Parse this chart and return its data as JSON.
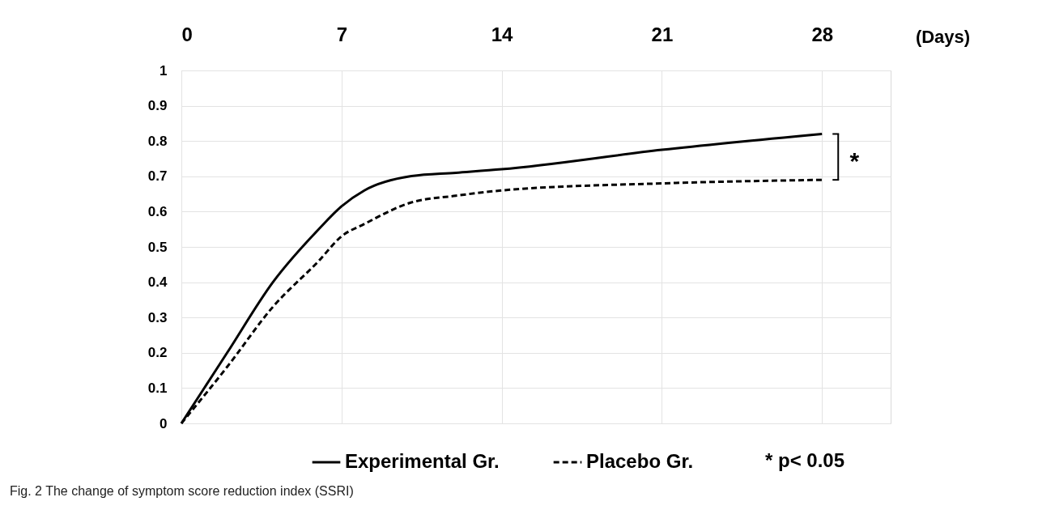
{
  "chart_data": {
    "type": "line",
    "xlabel": "(Days)",
    "xlim": [
      0,
      31
    ],
    "xticks": [
      0,
      7,
      14,
      21,
      28
    ],
    "ylim": [
      0,
      1
    ],
    "yticks": [
      0,
      0.1,
      0.2,
      0.3,
      0.4,
      0.5,
      0.6,
      0.7,
      0.8,
      0.9,
      1
    ],
    "grid": true,
    "legend": "bottom",
    "marker": "none",
    "series": [
      {
        "name": "Experimental Gr.",
        "color": "#000000",
        "line_style": "solid",
        "x": [
          0,
          2,
          4,
          6,
          7,
          8,
          10,
          12,
          14,
          21,
          28
        ],
        "values": [
          0,
          0.2,
          0.4,
          0.55,
          0.615,
          0.66,
          0.7,
          0.71,
          0.72,
          0.775,
          0.82
        ]
      },
      {
        "name": "Placebo Gr.",
        "color": "#000000",
        "line_style": "dashed",
        "x": [
          0,
          2,
          4,
          6,
          7,
          8,
          10,
          12,
          14,
          21,
          28
        ],
        "values": [
          0,
          0.16,
          0.33,
          0.46,
          0.53,
          0.565,
          0.625,
          0.645,
          0.66,
          0.68,
          0.69
        ]
      }
    ],
    "annotations": [
      "*",
      "* p< 0.05",
      "Fig. 2 The change of symptom score reduction index (SSRI)"
    ]
  }
}
